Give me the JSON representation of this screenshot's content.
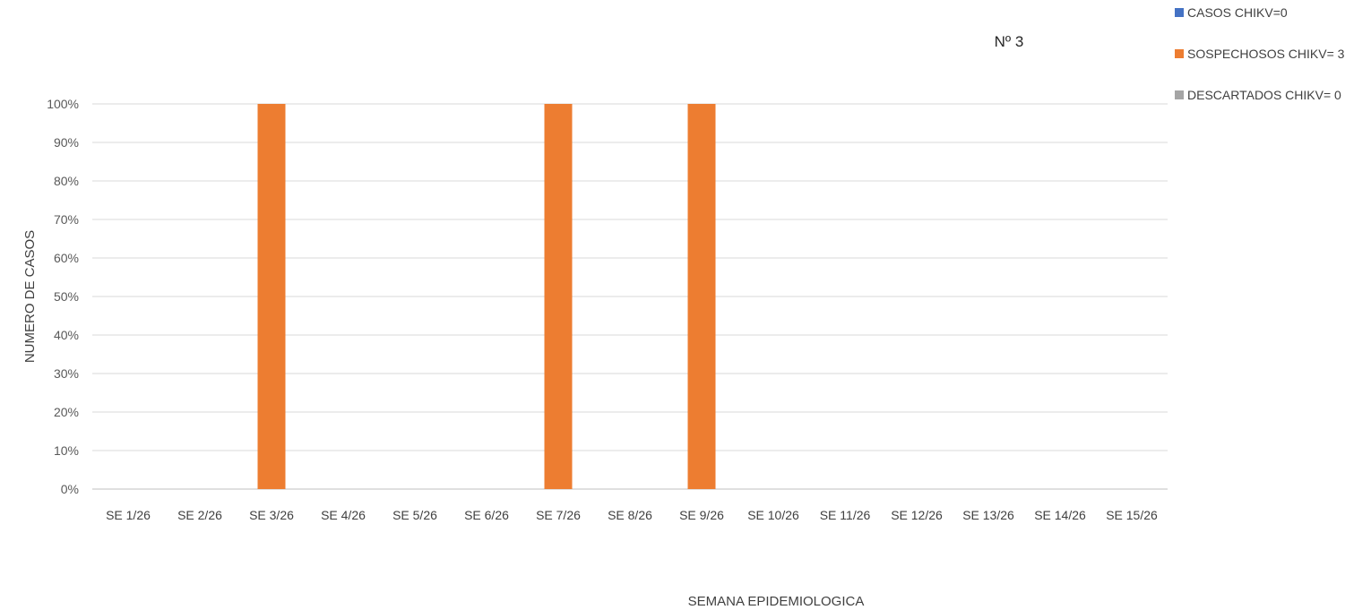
{
  "chart_data": {
    "type": "bar",
    "title": "Nº 3",
    "xlabel": "SEMANA EPIDEMIOLOGICA",
    "ylabel": "NUMERO DE CASOS",
    "ylim": [
      0,
      100
    ],
    "yticks": [
      "0%",
      "10%",
      "20%",
      "30%",
      "40%",
      "50%",
      "60%",
      "70%",
      "80%",
      "90%",
      "100%"
    ],
    "categories": [
      "SE 1/26",
      "SE 2/26",
      "SE 3/26",
      "SE 4/26",
      "SE 5/26",
      "SE 6/26",
      "SE 7/26",
      "SE 8/26",
      "SE 9/26",
      "SE 10/26",
      "SE 11/26",
      "SE 12/26",
      "SE 13/26",
      "SE 14/26",
      "SE 15/26"
    ],
    "series": [
      {
        "name": "CASOS CHIKV=0",
        "color": "#4472C4",
        "values": [
          0,
          0,
          0,
          0,
          0,
          0,
          0,
          0,
          0,
          0,
          0,
          0,
          0,
          0,
          0
        ]
      },
      {
        "name": "SOSPECHOSOS CHIKV= 3",
        "color": "#ED7D31",
        "values": [
          0,
          0,
          100,
          0,
          0,
          0,
          100,
          0,
          100,
          0,
          0,
          0,
          0,
          0,
          0
        ]
      },
      {
        "name": "DESCARTADOS CHIKV= 0",
        "color": "#A5A5A5",
        "values": [
          0,
          0,
          0,
          0,
          0,
          0,
          0,
          0,
          0,
          0,
          0,
          0,
          0,
          0,
          0
        ]
      }
    ],
    "grid": true,
    "legend_position": "top-right"
  }
}
